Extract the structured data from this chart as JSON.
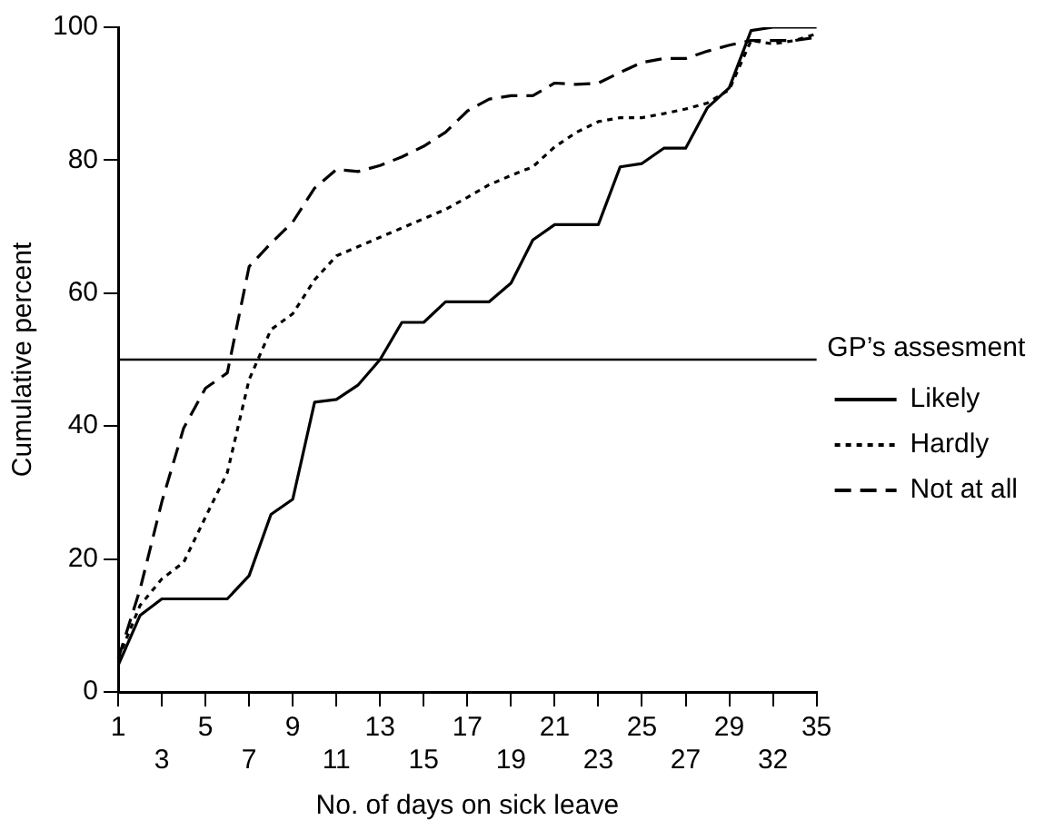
{
  "chart_data": {
    "type": "line",
    "xlabel": "No. of days on sick leave",
    "ylabel": "Cumulative percent",
    "legend_title": "GP’s assesment",
    "categories": [
      "1",
      null,
      "3",
      null,
      "5",
      null,
      "7",
      null,
      "9",
      null,
      "11",
      null,
      "13",
      null,
      "15",
      null,
      "17",
      null,
      "19",
      null,
      "21",
      null,
      "23",
      null,
      "25",
      null,
      "27",
      null,
      "29",
      null,
      "32",
      null,
      "35"
    ],
    "series": [
      {
        "name": "Likely",
        "color": "#000000",
        "line_style": "solid",
        "values": [
          4,
          11.5,
          14,
          14,
          14,
          14,
          17.5,
          26.7,
          29,
          43.6,
          44,
          46.2,
          50,
          55.6,
          55.6,
          58.7,
          58.7,
          58.7,
          61.5,
          68,
          70.3,
          70.3,
          70.3,
          79,
          79.5,
          81.8,
          81.8,
          87.9,
          90.9,
          99.5,
          100,
          100,
          100
        ]
      },
      {
        "name": "Hardly",
        "color": "#000000",
        "line_style": "dotted",
        "values": [
          5,
          13,
          17,
          19.5,
          26.3,
          33,
          47,
          54.5,
          56.9,
          62,
          65.6,
          67,
          68.4,
          69.8,
          71.2,
          72.6,
          74.4,
          76.3,
          77.7,
          79,
          82,
          84.2,
          85.8,
          86.4,
          86.4,
          87,
          87.7,
          88.6,
          90.6,
          98,
          97.5,
          98,
          99
        ]
      },
      {
        "name": "Not at all",
        "color": "#000000",
        "line_style": "dashed",
        "values": [
          5,
          15.4,
          28.6,
          39.7,
          45.7,
          48,
          64,
          67.5,
          70.7,
          75.8,
          78.6,
          78.3,
          79.2,
          80.5,
          82.1,
          84.2,
          87.4,
          89.2,
          89.7,
          89.7,
          91.6,
          91.4,
          91.6,
          93.2,
          94.7,
          95.3,
          95.3,
          96.4,
          97.3,
          98,
          98,
          98,
          98.5
        ]
      }
    ],
    "ylim": [
      0,
      100
    ],
    "yticks": [
      0,
      20,
      40,
      60,
      80,
      100
    ],
    "ref_lines": [
      {
        "axis": "y",
        "value": 50,
        "color": "#000000",
        "line_style": "solid"
      }
    ],
    "grid": false,
    "legend": "right",
    "marker": "none"
  }
}
